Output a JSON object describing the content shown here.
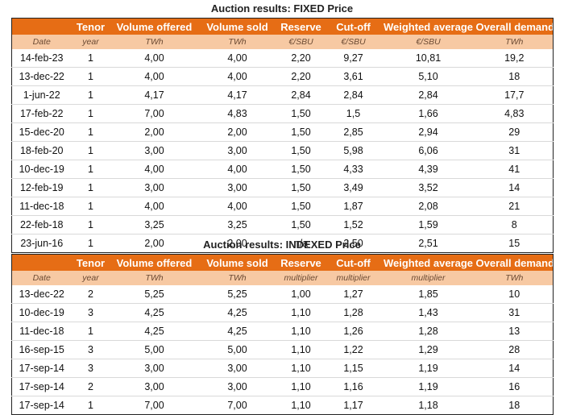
{
  "fixed": {
    "title": "Auction results: FIXED Price",
    "headers": [
      "",
      "Tenor",
      "Volume offered",
      "Volume sold",
      "Reserve",
      "Cut-off",
      "Weighted average",
      "Overall demand"
    ],
    "units": [
      "Date",
      "year",
      "TWh",
      "TWh",
      "€/SBU",
      "€/SBU",
      "€/SBU",
      "TWh"
    ],
    "rows": [
      [
        "14-feb-23",
        "1",
        "4,00",
        "4,00",
        "2,20",
        "9,27",
        "10,81",
        "19,2"
      ],
      [
        "13-dec-22",
        "1",
        "4,00",
        "4,00",
        "2,20",
        "3,61",
        "5,10",
        "18"
      ],
      [
        "1-jun-22",
        "1",
        "4,17",
        "4,17",
        "2,84",
        "2,84",
        "2,84",
        "17,7"
      ],
      [
        "17-feb-22",
        "1",
        "7,00",
        "4,83",
        "1,50",
        "1,5",
        "1,66",
        "4,83"
      ],
      [
        "15-dec-20",
        "1",
        "2,00",
        "2,00",
        "1,50",
        "2,85",
        "2,94",
        "29"
      ],
      [
        "18-feb-20",
        "1",
        "3,00",
        "3,00",
        "1,50",
        "5,98",
        "6,06",
        "31"
      ],
      [
        "10-dec-19",
        "1",
        "4,00",
        "4,00",
        "1,50",
        "4,33",
        "4,39",
        "41"
      ],
      [
        "12-feb-19",
        "1",
        "3,00",
        "3,00",
        "1,50",
        "3,49",
        "3,52",
        "14"
      ],
      [
        "11-dec-18",
        "1",
        "4,00",
        "4,00",
        "1,50",
        "1,87",
        "2,08",
        "21"
      ],
      [
        "22-feb-18",
        "1",
        "3,25",
        "3,25",
        "1,50",
        "1,52",
        "1,59",
        "8"
      ],
      [
        "23-jun-16",
        "1",
        "2,00",
        "2,00",
        "n/a",
        "2,50",
        "2,51",
        "15"
      ]
    ]
  },
  "indexed": {
    "title": "Auction results: INDEXED Price",
    "headers": [
      "",
      "Tenor",
      "Volume offered",
      "Volume sold",
      "Reserve",
      "Cut-off",
      "Weighted average",
      "Overall demand"
    ],
    "units": [
      "Date",
      "year",
      "TWh",
      "TWh",
      "multiplier",
      "multiplier",
      "multiplier",
      "TWh"
    ],
    "rows": [
      [
        "13-dec-22",
        "2",
        "5,25",
        "5,25",
        "1,00",
        "1,27",
        "1,85",
        "10"
      ],
      [
        "10-dec-19",
        "3",
        "4,25",
        "4,25",
        "1,10",
        "1,28",
        "1,43",
        "31"
      ],
      [
        "11-dec-18",
        "1",
        "4,25",
        "4,25",
        "1,10",
        "1,26",
        "1,28",
        "13"
      ],
      [
        "16-sep-15",
        "3",
        "5,00",
        "5,00",
        "1,10",
        "1,22",
        "1,29",
        "28"
      ],
      [
        "17-sep-14",
        "3",
        "3,00",
        "3,00",
        "1,10",
        "1,15",
        "1,19",
        "14"
      ],
      [
        "17-sep-14",
        "2",
        "3,00",
        "3,00",
        "1,10",
        "1,16",
        "1,19",
        "16"
      ],
      [
        "17-sep-14",
        "1",
        "7,00",
        "7,00",
        "1,10",
        "1,17",
        "1,18",
        "18"
      ]
    ]
  }
}
